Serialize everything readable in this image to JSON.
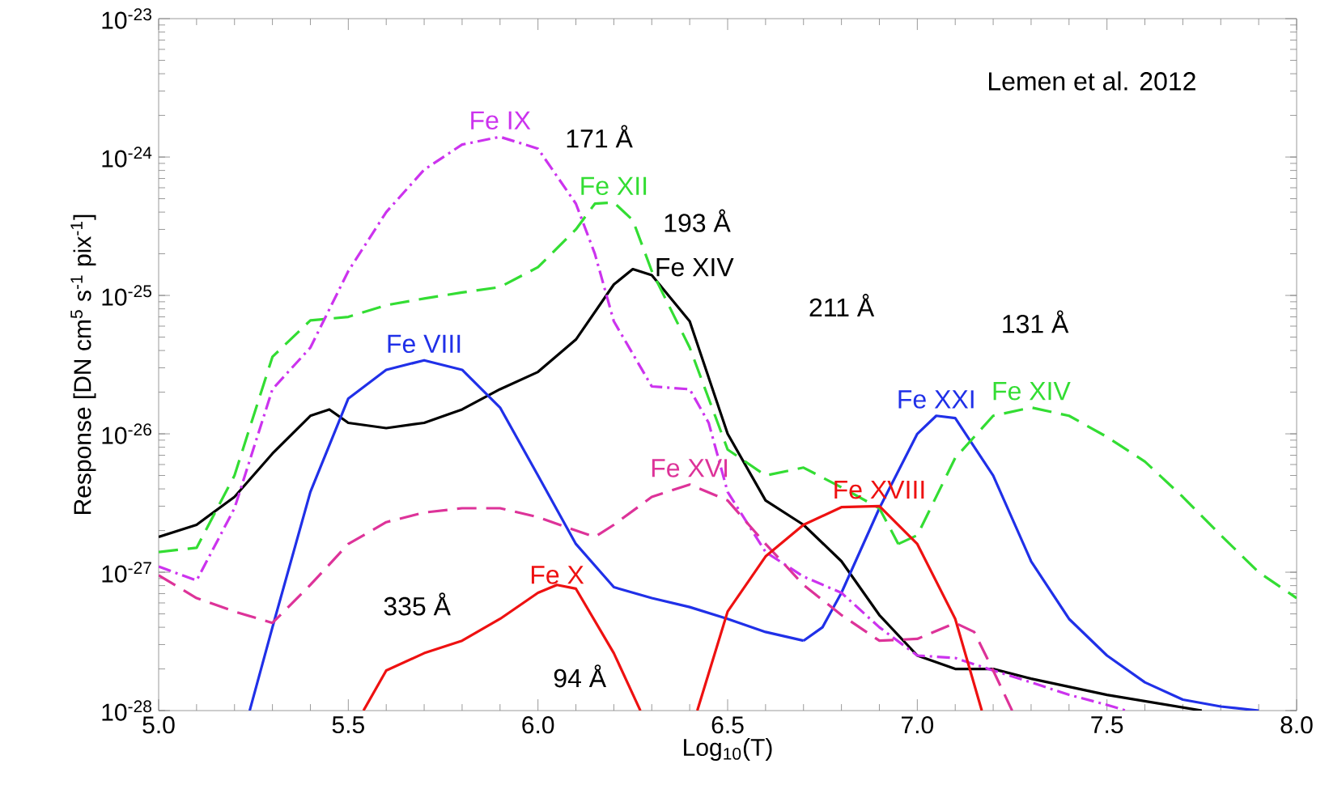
{
  "chart_data": {
    "type": "line",
    "xlabel": "Log$_{10}$(T)",
    "ylabel": "Response [DN cm$^{5}$ s$^{-1}$ pix$^{-1}$]",
    "log": "y",
    "xlim": [
      5.0,
      8.0
    ],
    "ylim": [
      1e-28,
      1e-23
    ],
    "xticks": [
      {
        "value": 5.0,
        "label": "5.0"
      },
      {
        "value": 5.5,
        "label": "5.5"
      },
      {
        "value": 6.0,
        "label": "6.0"
      },
      {
        "value": 6.5,
        "label": "6.5"
      },
      {
        "value": 7.0,
        "label": "7.0"
      },
      {
        "value": 7.5,
        "label": "7.5"
      },
      {
        "value": 8.0,
        "label": "8.0"
      }
    ],
    "yticks": [
      {
        "value": 1e-28,
        "label": "10$^{-28}$"
      },
      {
        "value": 1e-27,
        "label": "10$^{-27}$"
      },
      {
        "value": 1e-26,
        "label": "10$^{-26}$"
      },
      {
        "value": 1e-25,
        "label": "10$^{-25}$"
      },
      {
        "value": 1e-24,
        "label": "10$^{-24}$"
      },
      {
        "value": 1e-23,
        "label": "10$^{-23}$"
      }
    ],
    "series": [
      {
        "name": "Fe XIV",
        "color": "#000000",
        "line_style": "solid",
        "x": [
          5.0,
          5.1,
          5.2,
          5.3,
          5.4,
          5.45,
          5.5,
          5.6,
          5.7,
          5.8,
          5.9,
          6.0,
          6.1,
          6.2,
          6.25,
          6.3,
          6.4,
          6.5,
          6.6,
          6.7,
          6.8,
          6.9,
          7.0,
          7.1,
          7.2,
          7.3,
          7.5,
          7.75
        ],
        "values": [
          1.8e-27,
          2.2e-27,
          3.5e-27,
          7.2e-27,
          1.35e-26,
          1.5e-26,
          1.2e-26,
          1.1e-26,
          1.2e-26,
          1.5e-26,
          2.1e-26,
          2.8e-26,
          4.8e-26,
          1.2e-25,
          1.55e-25,
          1.4e-25,
          6.5e-26,
          1e-26,
          3.3e-27,
          2.2e-27,
          1.2e-27,
          4.9e-28,
          2.5e-28,
          2e-28,
          2e-28,
          1.7e-28,
          1.3e-28,
          1e-28
        ]
      },
      {
        "name": "Fe VIII",
        "color": "#2030e8",
        "line_style": "solid",
        "x": [
          5.24,
          5.3,
          5.4,
          5.5,
          5.6,
          5.7,
          5.8,
          5.9,
          6.0,
          6.1,
          6.2,
          6.3,
          6.4,
          6.5,
          6.6,
          6.7
        ],
        "values": [
          1e-28,
          4e-28,
          3.8e-27,
          1.8e-26,
          2.9e-26,
          3.4e-26,
          2.9e-26,
          1.55e-26,
          5e-27,
          1.6e-27,
          7.8e-28,
          6.5e-28,
          5.6e-28,
          4.6e-28,
          3.7e-28,
          3.2e-28
        ]
      },
      {
        "name": "Fe XXI",
        "color": "#2030e8",
        "line_style": "solid",
        "x": [
          6.7,
          6.75,
          6.8,
          6.9,
          7.0,
          7.05,
          7.1,
          7.2,
          7.3,
          7.4,
          7.5,
          7.6,
          7.7,
          7.8,
          7.9
        ],
        "values": [
          3.2e-28,
          4e-28,
          7.1e-28,
          2.9e-27,
          1e-26,
          1.35e-26,
          1.3e-26,
          5e-27,
          1.2e-27,
          4.6e-28,
          2.5e-28,
          1.6e-28,
          1.2e-28,
          1.07e-28,
          1e-28
        ]
      },
      {
        "name": "Fe XII",
        "color": "#33dd33",
        "line_style": "dashed",
        "x": [
          5.0,
          5.1,
          5.2,
          5.3,
          5.4,
          5.5,
          5.6,
          5.7,
          5.8,
          5.9,
          6.0,
          6.1,
          6.15,
          6.2,
          6.25,
          6.3,
          6.4,
          6.5,
          6.6,
          6.7,
          6.8,
          6.9,
          6.95
        ],
        "values": [
          1.4e-27,
          1.5e-27,
          5e-27,
          3.6e-26,
          6.6e-26,
          7e-26,
          8.5e-26,
          9.5e-26,
          1.05e-25,
          1.15e-25,
          1.6e-25,
          3e-25,
          4.6e-25,
          4.7e-25,
          3.5e-25,
          1.5e-25,
          4.2e-26,
          7.7e-27,
          5e-27,
          5.7e-27,
          4.1e-27,
          2.9e-27,
          1.6e-27
        ]
      },
      {
        "name": "Fe XIV",
        "color": "#33dd33",
        "line_style": "dashed",
        "x": [
          6.95,
          7.0,
          7.1,
          7.2,
          7.3,
          7.4,
          7.5,
          7.6,
          7.7,
          7.8,
          7.9,
          8.0
        ],
        "values": [
          1.6e-27,
          1.85e-27,
          6.7e-27,
          1.35e-26,
          1.55e-26,
          1.35e-26,
          9.5e-27,
          6.3e-27,
          3.5e-27,
          1.85e-27,
          1e-27,
          6.5e-28
        ]
      },
      {
        "name": "Fe IX",
        "color": "#cc33ee",
        "line_style": "dashdotted",
        "x": [
          5.0,
          5.1,
          5.2,
          5.3,
          5.4,
          5.5,
          5.6,
          5.7,
          5.8,
          5.9,
          6.0,
          6.1,
          6.15,
          6.2,
          6.3,
          6.4,
          6.45,
          6.5,
          6.6,
          6.7,
          6.8,
          6.9,
          7.0,
          7.1,
          7.2,
          7.3,
          7.4,
          7.5,
          7.55
        ],
        "values": [
          1.1e-27,
          8.7e-28,
          2.9e-27,
          2.1e-26,
          4.2e-26,
          1.5e-25,
          4e-25,
          8.1e-25,
          1.23e-24,
          1.4e-24,
          1.15e-24,
          4.6e-25,
          2e-25,
          6.5e-26,
          2.2e-26,
          2.1e-26,
          1.2e-26,
          3.8e-27,
          1.4e-27,
          9.3e-28,
          7.1e-28,
          4e-28,
          2.5e-28,
          2.4e-28,
          1.95e-28,
          1.6e-28,
          1.3e-28,
          1.1e-28,
          1e-28
        ]
      },
      {
        "name": "Fe XVI",
        "color": "#dd3399",
        "line_style": "dashed",
        "x": [
          5.0,
          5.1,
          5.2,
          5.3,
          5.4,
          5.5,
          5.6,
          5.7,
          5.8,
          5.9,
          6.0,
          6.1,
          6.15,
          6.2,
          6.3,
          6.4,
          6.5,
          6.6,
          6.7,
          6.8,
          6.9,
          7.0,
          7.1,
          7.15,
          7.2,
          7.25
        ],
        "values": [
          9.5e-28,
          6.5e-28,
          5.2e-28,
          4.3e-28,
          8.1e-28,
          1.6e-27,
          2.3e-27,
          2.7e-27,
          2.9e-27,
          2.9e-27,
          2.5e-27,
          2e-27,
          1.8e-27,
          2.2e-27,
          3.5e-27,
          4.3e-27,
          3.3e-27,
          1.6e-27,
          8.1e-28,
          4.9e-28,
          3.2e-28,
          3.3e-28,
          4.3e-28,
          3.7e-28,
          1.95e-28,
          1e-28
        ]
      },
      {
        "name": "Fe X",
        "color": "#ee1111",
        "line_style": "solid",
        "x": [
          5.54,
          5.6,
          5.7,
          5.8,
          5.9,
          6.0,
          6.05,
          6.1,
          6.2,
          6.27
        ],
        "values": [
          1e-28,
          1.95e-28,
          2.6e-28,
          3.2e-28,
          4.6e-28,
          7.1e-28,
          8.1e-28,
          7.6e-28,
          2.6e-28,
          1e-28
        ]
      },
      {
        "name": "Fe XVIII",
        "color": "#ee1111",
        "line_style": "solid",
        "x": [
          6.42,
          6.5,
          6.6,
          6.7,
          6.8,
          6.9,
          7.0,
          7.1,
          7.17
        ],
        "values": [
          1e-28,
          5.2e-28,
          1.3e-27,
          2.2e-27,
          2.95e-27,
          3e-27,
          1.6e-27,
          4.6e-28,
          1e-28
        ]
      }
    ],
    "annotations": [
      "171 Å",
      "193 Å",
      "211 Å",
      "131 Å",
      "335 Å",
      "94 Å",
      "Lemen et al. 2012"
    ]
  }
}
